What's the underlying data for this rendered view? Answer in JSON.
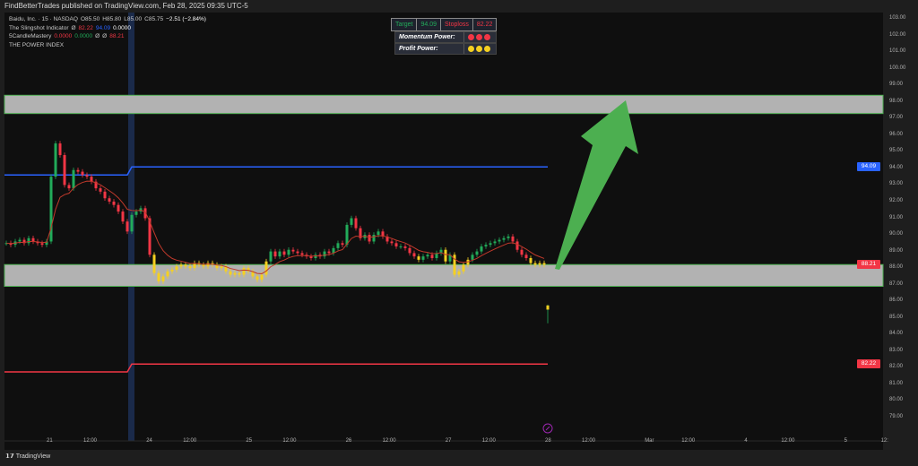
{
  "header": {
    "published": "FindBetterTrades published on TradingView.com, Feb 28, 2025 09:35 UTC-5"
  },
  "legend": {
    "symbol": "Baidu, Inc. · 15 · NASDAQ",
    "ohlc": {
      "o": "O85.50",
      "h": "H85.80",
      "l": "L85.00",
      "c": "C85.75",
      "chg": "−2.51 (−2.84%)"
    },
    "slingshot": {
      "name": "The Slingshot Indicator",
      "sym": "Ø",
      "v1": "82.22",
      "v2": "94.09",
      "v3": "0.0000"
    },
    "candle": {
      "name": "5CandleMastery",
      "v1": "0.0000",
      "v2": "0.0000",
      "sym1": "Ø",
      "sym2": "Ø",
      "v3": "88.21"
    },
    "power": {
      "name": "THE POWER INDEX"
    }
  },
  "info_table": {
    "target_label": "Target",
    "target_value": "94.09",
    "stoploss_label": "Stoploss",
    "stoploss_value": "82.22",
    "momentum_label": "Momentum Power:",
    "momentum_color": "#f23645",
    "profit_label": "Profit Power:",
    "profit_color": "#f5d020"
  },
  "price_axis": {
    "ticks": [
      "103.00",
      "102.00",
      "101.00",
      "100.00",
      "99.00",
      "98.00",
      "97.00",
      "96.00",
      "95.00",
      "94.00",
      "93.00",
      "92.00",
      "91.00",
      "90.00",
      "89.00",
      "88.00",
      "87.00",
      "86.00",
      "85.00",
      "84.00",
      "83.00",
      "82.00",
      "81.00",
      "80.00",
      "79.00"
    ],
    "tags": [
      {
        "value": "94.09",
        "color": "#2962ff"
      },
      {
        "value": "88.21",
        "color": "#f23645"
      },
      {
        "value": "82.22",
        "color": "#f23645"
      }
    ]
  },
  "time_axis": {
    "ticks": [
      "21",
      "12:00",
      "24",
      "12:00",
      "25",
      "12:00",
      "26",
      "12:00",
      "27",
      "12:00",
      "28",
      "12:00",
      "Mar",
      "12:00",
      "4",
      "12:00",
      "5",
      "12:"
    ]
  },
  "footer": {
    "brand": "TradingView"
  },
  "chart_data": {
    "type": "candlestick",
    "ylim": [
      79,
      103
    ],
    "close": [
      89.5,
      89.4,
      89.6,
      89.7,
      89.5,
      89.8,
      89.6,
      89.5,
      89.4,
      89.6,
      93.5,
      95.5,
      94.8,
      93.0,
      92.8,
      93.9,
      93.8,
      93.6,
      93.5,
      93.2,
      92.8,
      92.6,
      92.2,
      92.0,
      91.8,
      91.4,
      90.8,
      90.2,
      91.2,
      91.4,
      91.6,
      91.0,
      88.8,
      87.7,
      87.2,
      87.5,
      87.8,
      87.9,
      88.1,
      88.2,
      88.1,
      88.0,
      88.3,
      88.2,
      88.1,
      88.3,
      88.2,
      88.0,
      88.1,
      87.8,
      87.6,
      87.7,
      87.6,
      88.0,
      87.8,
      87.5,
      87.3,
      87.6,
      88.4,
      89.0,
      88.7,
      89.0,
      88.8,
      89.1,
      89.0,
      88.9,
      88.8,
      88.7,
      88.6,
      88.8,
      88.7,
      89.0,
      88.9,
      89.2,
      89.5,
      89.4,
      90.6,
      91.0,
      90.4,
      89.8,
      90.0,
      89.6,
      90.0,
      90.2,
      89.9,
      89.6,
      89.5,
      89.3,
      89.3,
      89.2,
      88.9,
      88.7,
      88.5,
      88.7,
      88.8,
      88.6,
      88.9,
      89.1,
      88.4,
      88.8,
      87.6,
      87.8,
      88.2,
      88.5,
      88.8,
      89.0,
      89.3,
      89.4,
      89.5,
      89.6,
      89.7,
      89.8,
      89.9,
      89.6,
      89.1,
      88.8,
      88.6,
      88.3,
      88.2,
      88.3,
      88.2
    ],
    "last_candle": {
      "open": 85.5,
      "high": 85.8,
      "low": 85.0,
      "close": 85.75
    },
    "zones": [
      {
        "low": 97.3,
        "high": 98.4
      },
      {
        "low": 86.9,
        "high": 88.21
      }
    ],
    "target_line": {
      "before": 93.6,
      "after": 94.09
    },
    "stop_line": {
      "before": 81.75,
      "after": 82.22
    },
    "colors": {
      "up": "#22ab5a",
      "down": "#f23645",
      "inzone": "#f5d020",
      "ma": "#c0392b",
      "arrow": "#4caf50",
      "zone": "#b2b2b2"
    }
  }
}
